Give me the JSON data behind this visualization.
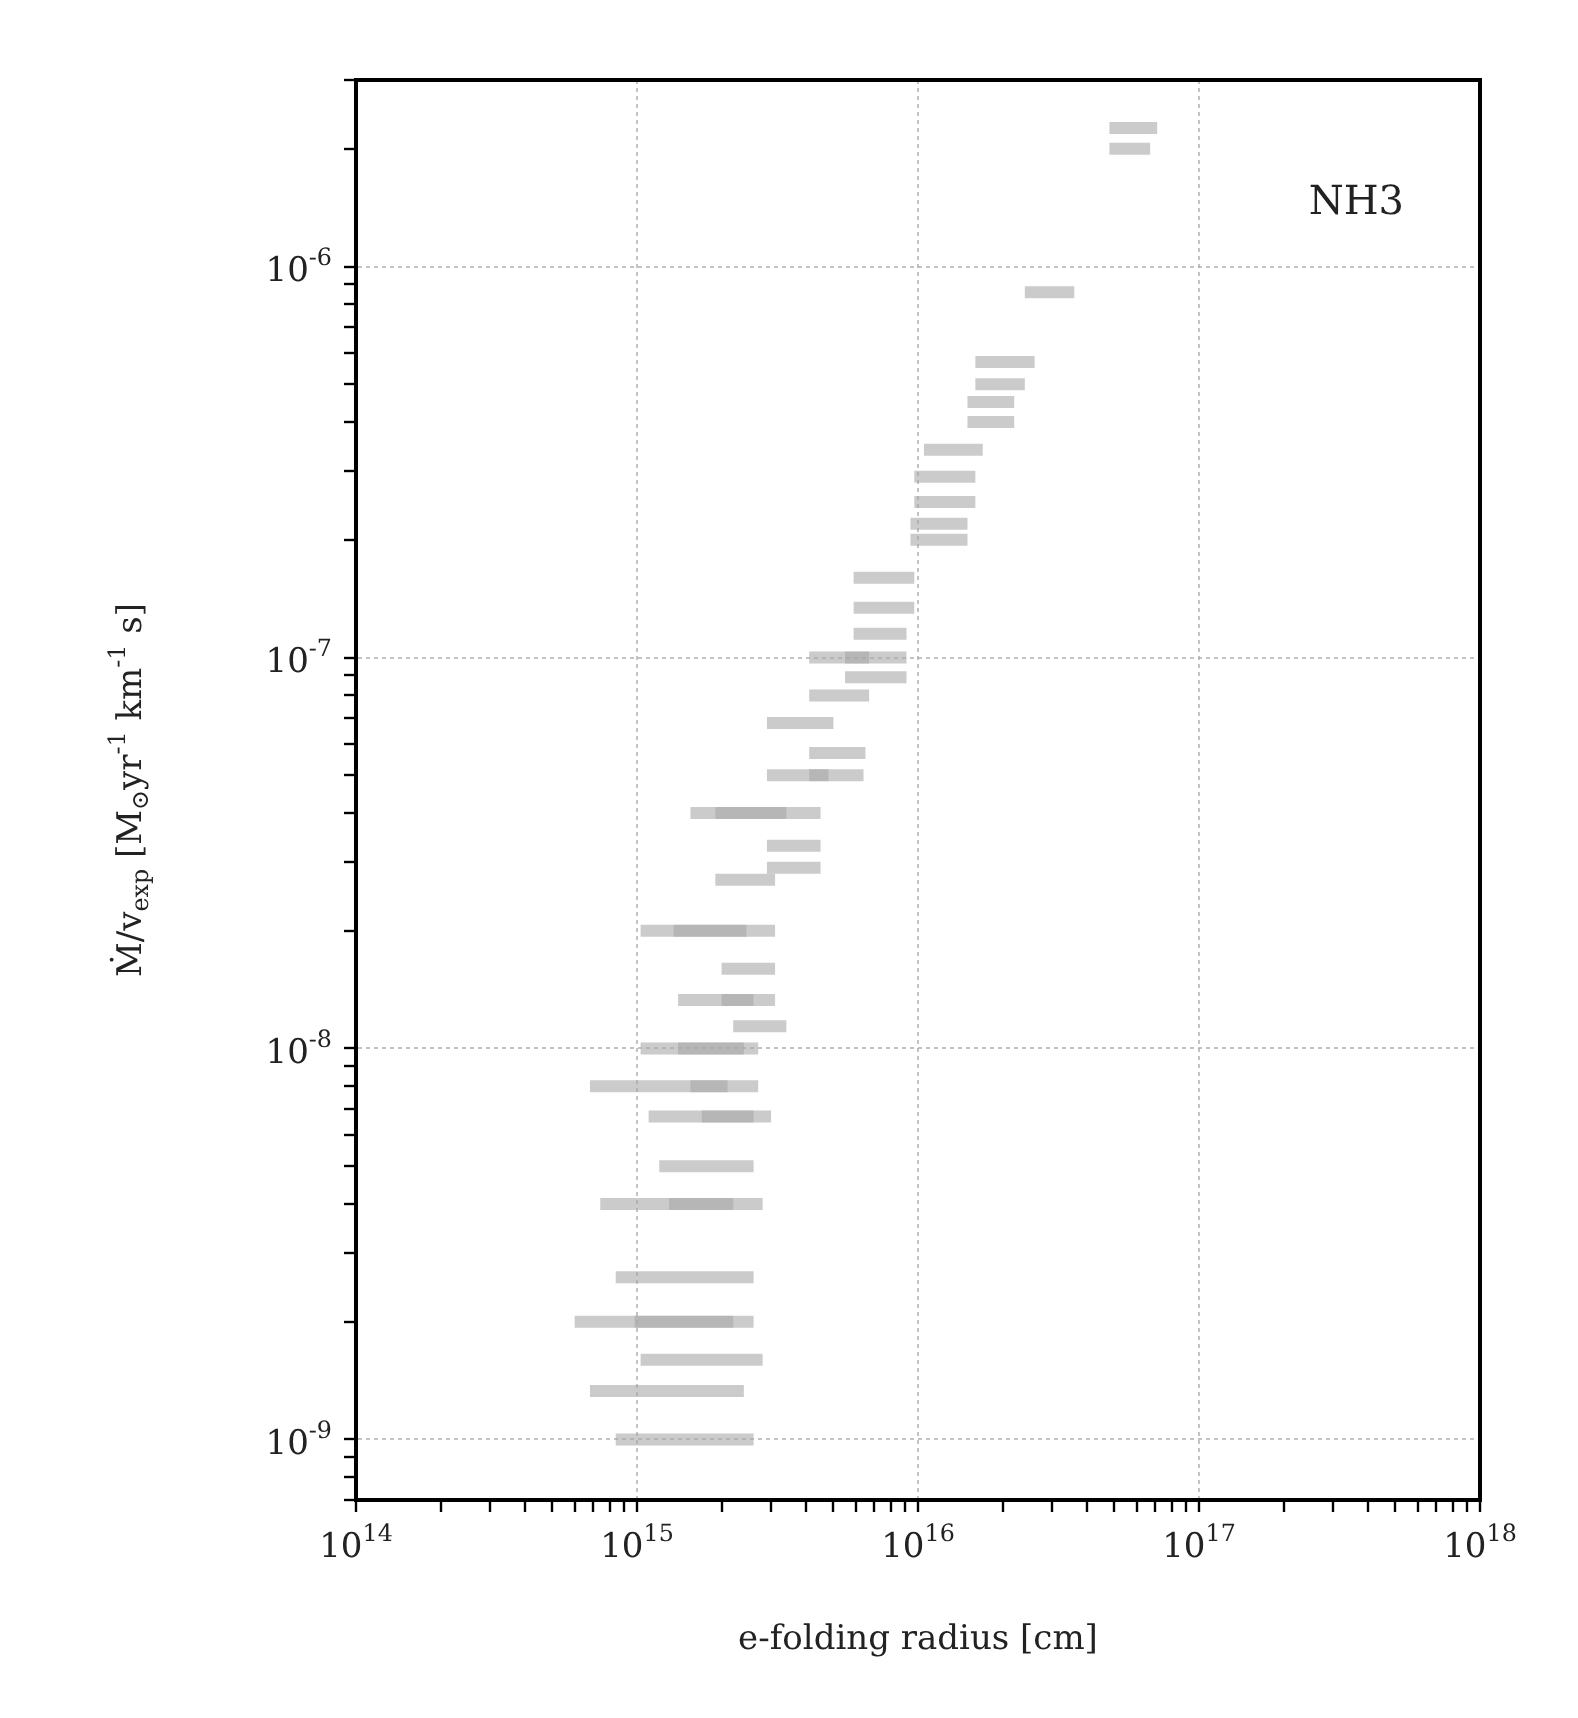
{
  "chart_data": {
    "type": "line",
    "xlabel": "e-folding radius [cm]",
    "ylabel": "Ṁ/v$_{exp}$ [M$_{⊙}$yr$^{-1}$ km$^{-1}$ s]",
    "annotations": [
      "NH3"
    ],
    "log": "xy",
    "grid": true,
    "marker": "none",
    "xlim": [
      100000000000000.0,
      1e+18
    ],
    "xticks": [
      {
        "value": 100000000000000.0,
        "label": "10$^{14}$"
      },
      {
        "value": 200000000000000.0,
        "label": null
      },
      {
        "value": 300000000000000.0,
        "label": null
      },
      {
        "value": 400000000000000.0,
        "label": null
      },
      {
        "value": 500000000000000.0,
        "label": null
      },
      {
        "value": 600000000000000.0,
        "label": null
      },
      {
        "value": 700000000000000.0,
        "label": null
      },
      {
        "value": 800000000000000.0,
        "label": null
      },
      {
        "value": 900000000000000.0,
        "label": null
      },
      {
        "value": 1000000000000000.0,
        "label": "10$^{15}$"
      },
      {
        "value": 2000000000000000.0,
        "label": null
      },
      {
        "value": 3000000000000000.0,
        "label": null
      },
      {
        "value": 4000000000000000.0,
        "label": null
      },
      {
        "value": 5000000000000000.0,
        "label": null
      },
      {
        "value": 6000000000000000.0,
        "label": null
      },
      {
        "value": 7000000000000000.0,
        "label": null
      },
      {
        "value": 8000000000000000.0,
        "label": null
      },
      {
        "value": 9000000000000000.0,
        "label": null
      },
      {
        "value": 1e+16,
        "label": "10$^{16}$"
      },
      {
        "value": 2e+16,
        "label": null
      },
      {
        "value": 3e+16,
        "label": null
      },
      {
        "value": 4e+16,
        "label": null
      },
      {
        "value": 5e+16,
        "label": null
      },
      {
        "value": 6e+16,
        "label": null
      },
      {
        "value": 7e+16,
        "label": null
      },
      {
        "value": 8e+16,
        "label": null
      },
      {
        "value": 9e+16,
        "label": null
      },
      {
        "value": 1e+17,
        "label": "10$^{17}$"
      },
      {
        "value": 2e+17,
        "label": null
      },
      {
        "value": 3e+17,
        "label": null
      },
      {
        "value": 4e+17,
        "label": null
      },
      {
        "value": 5e+17,
        "label": null
      },
      {
        "value": 6e+17,
        "label": null
      },
      {
        "value": 7e+17,
        "label": null
      },
      {
        "value": 8e+17,
        "label": null
      },
      {
        "value": 9e+17,
        "label": null
      },
      {
        "value": 1e+18,
        "label": "10$^{18}$"
      }
    ],
    "ylim": [
      7e-10,
      3e-06
    ],
    "yticks": [
      {
        "value": 7e-10,
        "label": null
      },
      {
        "value": 8e-10,
        "label": null
      },
      {
        "value": 9e-10,
        "label": null
      },
      {
        "value": 1e-09,
        "label": "10$^{-9}$"
      },
      {
        "value": 2e-09,
        "label": null
      },
      {
        "value": 3e-09,
        "label": null
      },
      {
        "value": 4e-09,
        "label": null
      },
      {
        "value": 5e-09,
        "label": null
      },
      {
        "value": 6e-09,
        "label": null
      },
      {
        "value": 7e-09,
        "label": null
      },
      {
        "value": 8e-09,
        "label": null
      },
      {
        "value": 9e-09,
        "label": null
      },
      {
        "value": 1e-08,
        "label": "10$^{-8}$"
      },
      {
        "value": 2e-08,
        "label": null
      },
      {
        "value": 3e-08,
        "label": null
      },
      {
        "value": 4e-08,
        "label": null
      },
      {
        "value": 5e-08,
        "label": null
      },
      {
        "value": 6e-08,
        "label": null
      },
      {
        "value": 7e-08,
        "label": null
      },
      {
        "value": 8e-08,
        "label": null
      },
      {
        "value": 9e-08,
        "label": null
      },
      {
        "value": 1e-07,
        "label": "10$^{-7}$"
      },
      {
        "value": 2e-07,
        "label": null
      },
      {
        "value": 3e-07,
        "label": null
      },
      {
        "value": 4e-07,
        "label": null
      },
      {
        "value": 5e-07,
        "label": null
      },
      {
        "value": 6e-07,
        "label": null
      },
      {
        "value": 7e-07,
        "label": null
      },
      {
        "value": 8e-07,
        "label": null
      },
      {
        "value": 9e-07,
        "label": null
      },
      {
        "value": 1e-06,
        "label": "10$^{-6}$"
      },
      {
        "value": 2e-06,
        "label": null
      },
      {
        "value": 3e-06,
        "label": null
      }
    ],
    "series": [
      {
        "color": "#a9a9a9",
        "x": [
          4.8e+16,
          7.1e+16
        ],
        "values": [
          2.26e-06,
          2.26e-06
        ]
      },
      {
        "color": "#a9a9a9",
        "x": [
          4.8e+16,
          6.7e+16
        ],
        "values": [
          2e-06,
          2e-06
        ]
      },
      {
        "color": "#a9a9a9",
        "x": [
          2.4e+16,
          3.6e+16
        ],
        "values": [
          8.6e-07,
          8.6e-07
        ]
      },
      {
        "color": "#a9a9a9",
        "x": [
          1.6e+16,
          2.6e+16
        ],
        "values": [
          5.7e-07,
          5.7e-07
        ]
      },
      {
        "color": "#a9a9a9",
        "x": [
          1.6e+16,
          2.4e+16
        ],
        "values": [
          5e-07,
          5e-07
        ]
      },
      {
        "color": "#a9a9a9",
        "x": [
          1.5e+16,
          2.2e+16
        ],
        "values": [
          4.5e-07,
          4.5e-07
        ]
      },
      {
        "color": "#a9a9a9",
        "x": [
          1.5e+16,
          2.2e+16
        ],
        "values": [
          4e-07,
          4e-07
        ]
      },
      {
        "color": "#a9a9a9",
        "x": [
          1.05e+16,
          1.7e+16
        ],
        "values": [
          3.4e-07,
          3.4e-07
        ]
      },
      {
        "color": "#a9a9a9",
        "x": [
          9700000000000000.0,
          1.6e+16
        ],
        "values": [
          2.9e-07,
          2.9e-07
        ]
      },
      {
        "color": "#a9a9a9",
        "x": [
          9700000000000000.0,
          1.6e+16
        ],
        "values": [
          2.5e-07,
          2.5e-07
        ]
      },
      {
        "color": "#a9a9a9",
        "x": [
          9400000000000000.0,
          1.5e+16
        ],
        "values": [
          2.2e-07,
          2.2e-07
        ]
      },
      {
        "color": "#a9a9a9",
        "x": [
          9400000000000000.0,
          1.5e+16
        ],
        "values": [
          2e-07,
          2e-07
        ]
      },
      {
        "color": "#a9a9a9",
        "x": [
          5900000000000000.0,
          9700000000000000.0
        ],
        "values": [
          1.6e-07,
          1.6e-07
        ]
      },
      {
        "color": "#a9a9a9",
        "x": [
          5900000000000000.0,
          9700000000000000.0
        ],
        "values": [
          1.34e-07,
          1.34e-07
        ]
      },
      {
        "color": "#a9a9a9",
        "x": [
          5900000000000000.0,
          9100000000000000.0
        ],
        "values": [
          1.15e-07,
          1.15e-07
        ]
      },
      {
        "color": "#a9a9a9",
        "x": [
          4100000000000000.0,
          9100000000000000.0
        ],
        "values": [
          1e-07,
          1e-07
        ]
      },
      {
        "color": "#a9a9a9",
        "x": [
          5500000000000000.0,
          6700000000000000.0
        ],
        "values": [
          1e-07,
          1e-07
        ]
      },
      {
        "color": "#a9a9a9",
        "x": [
          5500000000000000.0,
          9100000000000000.0
        ],
        "values": [
          8.9e-08,
          8.9e-08
        ]
      },
      {
        "color": "#a9a9a9",
        "x": [
          4100000000000000.0,
          6700000000000000.0
        ],
        "values": [
          8e-08,
          8e-08
        ]
      },
      {
        "color": "#a9a9a9",
        "x": [
          2900000000000000.0,
          5000000000000000.0
        ],
        "values": [
          6.8e-08,
          6.8e-08
        ]
      },
      {
        "color": "#a9a9a9",
        "x": [
          4100000000000000.0,
          6500000000000000.0
        ],
        "values": [
          5.7e-08,
          5.7e-08
        ]
      },
      {
        "color": "#a9a9a9",
        "x": [
          2900000000000000.0,
          6400000000000000.0
        ],
        "values": [
          5e-08,
          5e-08
        ]
      },
      {
        "color": "#a9a9a9",
        "x": [
          4100000000000000.0,
          4800000000000000.0
        ],
        "values": [
          5e-08,
          5e-08
        ]
      },
      {
        "color": "#a9a9a9",
        "x": [
          1550000000000000.0,
          4500000000000000.0
        ],
        "values": [
          4e-08,
          4e-08
        ]
      },
      {
        "color": "#a9a9a9",
        "x": [
          1900000000000000.0,
          3400000000000000.0
        ],
        "values": [
          4e-08,
          4e-08
        ]
      },
      {
        "color": "#a9a9a9",
        "x": [
          2900000000000000.0,
          4500000000000000.0
        ],
        "values": [
          3.3e-08,
          3.3e-08
        ]
      },
      {
        "color": "#a9a9a9",
        "x": [
          2900000000000000.0,
          4500000000000000.0
        ],
        "values": [
          2.9e-08,
          2.9e-08
        ]
      },
      {
        "color": "#a9a9a9",
        "x": [
          1900000000000000.0,
          3100000000000000.0
        ],
        "values": [
          2.7e-08,
          2.7e-08
        ]
      },
      {
        "color": "#a9a9a9",
        "x": [
          1030000000000000.0,
          3100000000000000.0
        ],
        "values": [
          2e-08,
          2e-08
        ]
      },
      {
        "color": "#a9a9a9",
        "x": [
          1350000000000000.0,
          2450000000000000.0
        ],
        "values": [
          2e-08,
          2e-08
        ]
      },
      {
        "color": "#a9a9a9",
        "x": [
          2000000000000000.0,
          3100000000000000.0
        ],
        "values": [
          1.6e-08,
          1.6e-08
        ]
      },
      {
        "color": "#a9a9a9",
        "x": [
          1400000000000000.0,
          3100000000000000.0
        ],
        "values": [
          1.33e-08,
          1.33e-08
        ]
      },
      {
        "color": "#a9a9a9",
        "x": [
          2000000000000000.0,
          2600000000000000.0
        ],
        "values": [
          1.33e-08,
          1.33e-08
        ]
      },
      {
        "color": "#a9a9a9",
        "x": [
          2200000000000000.0,
          3400000000000000.0
        ],
        "values": [
          1.14e-08,
          1.14e-08
        ]
      },
      {
        "color": "#a9a9a9",
        "x": [
          1030000000000000.0,
          2700000000000000.0
        ],
        "values": [
          1e-08,
          1e-08
        ]
      },
      {
        "color": "#a9a9a9",
        "x": [
          1400000000000000.0,
          2400000000000000.0
        ],
        "values": [
          1e-08,
          1e-08
        ]
      },
      {
        "color": "#a9a9a9",
        "x": [
          680000000000000.0,
          2700000000000000.0
        ],
        "values": [
          8e-09,
          8e-09
        ]
      },
      {
        "color": "#a9a9a9",
        "x": [
          1550000000000000.0,
          2100000000000000.0
        ],
        "values": [
          8e-09,
          8e-09
        ]
      },
      {
        "color": "#a9a9a9",
        "x": [
          1100000000000000.0,
          3000000000000000.0
        ],
        "values": [
          6.7e-09,
          6.7e-09
        ]
      },
      {
        "color": "#a9a9a9",
        "x": [
          1700000000000000.0,
          2600000000000000.0
        ],
        "values": [
          6.7e-09,
          6.7e-09
        ]
      },
      {
        "color": "#a9a9a9",
        "x": [
          1200000000000000.0,
          2600000000000000.0
        ],
        "values": [
          5e-09,
          5e-09
        ]
      },
      {
        "color": "#a9a9a9",
        "x": [
          740000000000000.0,
          2800000000000000.0
        ],
        "values": [
          4e-09,
          4e-09
        ]
      },
      {
        "color": "#a9a9a9",
        "x": [
          1300000000000000.0,
          2200000000000000.0
        ],
        "values": [
          4e-09,
          4e-09
        ]
      },
      {
        "color": "#a9a9a9",
        "x": [
          840000000000000.0,
          2600000000000000.0
        ],
        "values": [
          2.6e-09,
          2.6e-09
        ]
      },
      {
        "color": "#a9a9a9",
        "x": [
          600000000000000.0,
          2600000000000000.0
        ],
        "values": [
          2e-09,
          2e-09
        ]
      },
      {
        "color": "#a9a9a9",
        "x": [
          980000000000000.0,
          2200000000000000.0
        ],
        "values": [
          2e-09,
          2e-09
        ]
      },
      {
        "color": "#a9a9a9",
        "x": [
          1030000000000000.0,
          2800000000000000.0
        ],
        "values": [
          1.6e-09,
          1.6e-09
        ]
      },
      {
        "color": "#a9a9a9",
        "x": [
          680000000000000.0,
          2400000000000000.0
        ],
        "values": [
          1.33e-09,
          1.33e-09
        ]
      },
      {
        "color": "#a9a9a9",
        "x": [
          840000000000000.0,
          2600000000000000.0
        ],
        "values": [
          1e-09,
          1e-09
        ]
      }
    ]
  }
}
